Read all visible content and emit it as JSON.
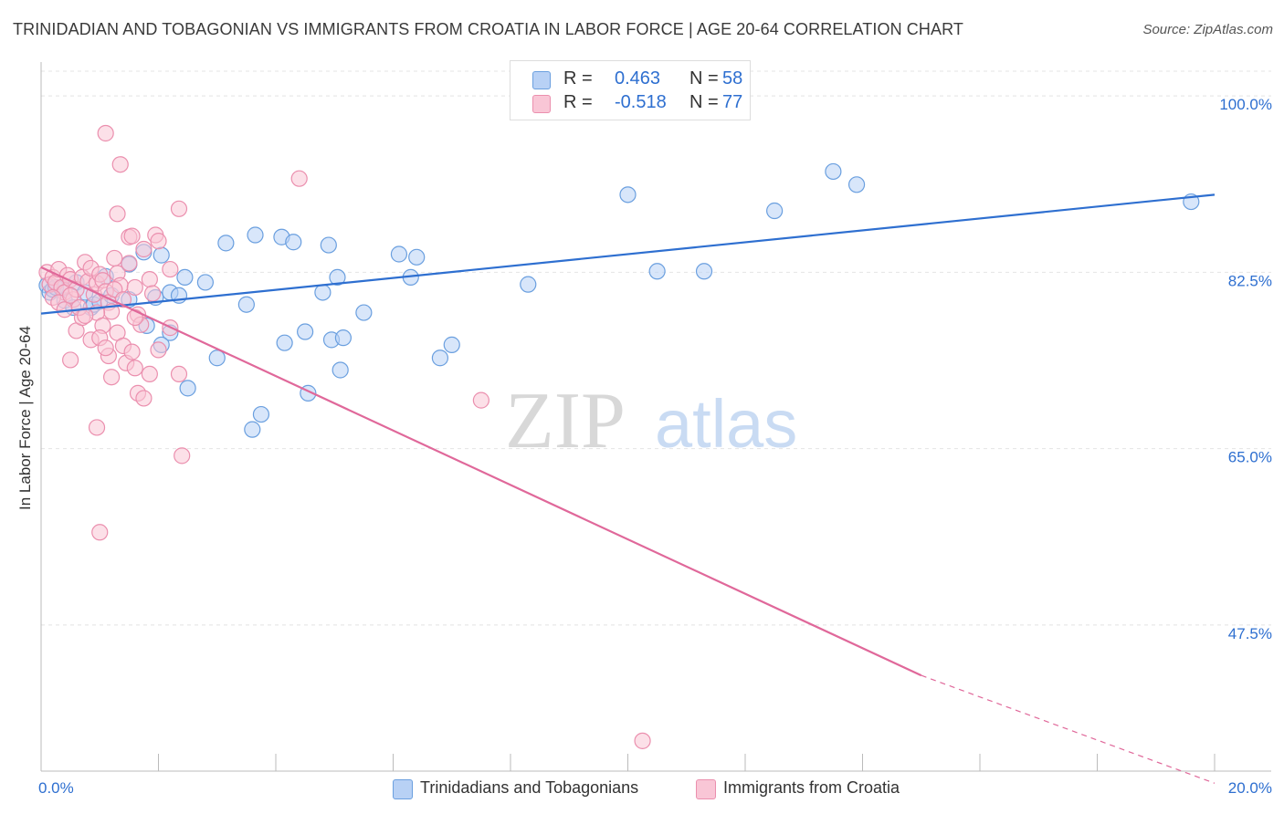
{
  "title": "TRINIDADIAN AND TOBAGONIAN VS IMMIGRANTS FROM CROATIA IN LABOR FORCE | AGE 20-64 CORRELATION CHART",
  "source": "Source: ZipAtlas.com",
  "watermark": {
    "zip": "ZIP",
    "atlas": "atlas"
  },
  "colors": {
    "blue_fill": "#b8d1f5",
    "blue_stroke": "#6a9fdf",
    "blue_line": "#2e6fd0",
    "pink_fill": "#f9c6d6",
    "pink_stroke": "#eb8fae",
    "pink_line": "#e0689a",
    "blue_text": "#2e6fd0",
    "grid": "#e4e4e4",
    "axis": "#bbbbbb"
  },
  "stats": [
    {
      "r_label": "R =",
      "r_value": "0.463",
      "n_label": "N =",
      "n_value": "58",
      "color": "blue"
    },
    {
      "r_label": "R =",
      "r_value": "-0.518",
      "n_label": "N =",
      "n_value": "77",
      "color": "pink"
    }
  ],
  "chart_data": {
    "type": "scatter",
    "title": "TRINIDADIAN AND TOBAGONIAN VS IMMIGRANTS FROM CROATIA IN LABOR FORCE | AGE 20-64 CORRELATION CHART",
    "xlabel": "",
    "ylabel": "In Labor Force | Age 20-64",
    "xlim": [
      0,
      20
    ],
    "ylim": [
      33,
      103
    ],
    "x_tick_labels": [
      "0.0%",
      "20.0%"
    ],
    "y_ticks": [
      47.5,
      65.0,
      82.5,
      100.0
    ],
    "y_tick_labels": [
      "47.5%",
      "65.0%",
      "82.5%",
      "100.0%"
    ],
    "grid": true,
    "legend_position": "bottom-center",
    "series": [
      {
        "name": "Trinidadians and Tobagonians",
        "color": "blue",
        "trend": {
          "x": [
            0,
            20
          ],
          "y": [
            78.4,
            90.2
          ]
        },
        "points": [
          [
            0.1,
            81.2
          ],
          [
            0.15,
            80.5
          ],
          [
            0.2,
            80.8
          ],
          [
            0.25,
            81.0
          ],
          [
            0.35,
            80.9
          ],
          [
            0.4,
            79.7
          ],
          [
            0.55,
            79.0
          ],
          [
            0.6,
            81.5
          ],
          [
            0.75,
            80.5
          ],
          [
            0.85,
            79.0
          ],
          [
            0.9,
            79.3
          ],
          [
            1.0,
            79.6
          ],
          [
            1.1,
            82.1
          ],
          [
            1.5,
            83.3
          ],
          [
            1.75,
            84.5
          ],
          [
            1.95,
            80.0
          ],
          [
            2.05,
            84.2
          ],
          [
            2.2,
            80.5
          ],
          [
            2.35,
            80.2
          ],
          [
            2.45,
            82.0
          ],
          [
            2.8,
            81.5
          ],
          [
            3.15,
            85.4
          ],
          [
            3.5,
            79.3
          ],
          [
            3.65,
            86.2
          ],
          [
            4.1,
            86.0
          ],
          [
            4.3,
            85.5
          ],
          [
            4.5,
            76.6
          ],
          [
            4.8,
            80.5
          ],
          [
            4.9,
            85.2
          ],
          [
            5.05,
            82.0
          ],
          [
            5.1,
            72.8
          ],
          [
            1.8,
            77.2
          ],
          [
            2.2,
            76.5
          ],
          [
            2.05,
            75.3
          ],
          [
            1.5,
            79.8
          ],
          [
            1.2,
            80.2
          ],
          [
            2.5,
            71.0
          ],
          [
            3.0,
            74.0
          ],
          [
            3.75,
            68.4
          ],
          [
            3.6,
            66.9
          ],
          [
            4.15,
            75.5
          ],
          [
            4.55,
            70.5
          ],
          [
            4.95,
            75.8
          ],
          [
            5.15,
            76.0
          ],
          [
            5.5,
            78.5
          ],
          [
            6.1,
            84.3
          ],
          [
            6.3,
            82.0
          ],
          [
            6.4,
            84.0
          ],
          [
            6.8,
            74.0
          ],
          [
            7.0,
            75.3
          ],
          [
            8.3,
            81.3
          ],
          [
            10.0,
            90.2
          ],
          [
            10.5,
            82.6
          ],
          [
            11.3,
            82.6
          ],
          [
            12.5,
            88.6
          ],
          [
            13.5,
            92.5
          ],
          [
            13.9,
            91.2
          ],
          [
            19.6,
            89.5
          ]
        ]
      },
      {
        "name": "Immigrants from Croatia",
        "color": "pink",
        "trend": {
          "x": [
            0,
            15.0
          ],
          "y": [
            83.0,
            42.5
          ]
        },
        "trend_dashed": {
          "x": [
            15.0,
            20
          ],
          "y": [
            42.5,
            31.8
          ]
        },
        "points": [
          [
            0.1,
            82.5
          ],
          [
            0.15,
            81.3
          ],
          [
            0.2,
            82.0
          ],
          [
            0.25,
            81.5
          ],
          [
            0.3,
            82.8
          ],
          [
            0.35,
            81.0
          ],
          [
            0.4,
            80.5
          ],
          [
            0.45,
            82.2
          ],
          [
            0.5,
            81.8
          ],
          [
            0.55,
            79.8
          ],
          [
            0.6,
            80.8
          ],
          [
            0.7,
            82.0
          ],
          [
            0.75,
            83.5
          ],
          [
            0.8,
            81.6
          ],
          [
            0.85,
            82.9
          ],
          [
            0.9,
            80.3
          ],
          [
            0.95,
            81.4
          ],
          [
            1.0,
            82.3
          ],
          [
            1.05,
            81.7
          ],
          [
            1.1,
            80.6
          ],
          [
            1.15,
            79.5
          ],
          [
            1.2,
            78.6
          ],
          [
            1.25,
            83.9
          ],
          [
            1.3,
            82.4
          ],
          [
            1.35,
            81.2
          ],
          [
            1.5,
            86.0
          ],
          [
            1.5,
            83.4
          ],
          [
            1.6,
            81.0
          ],
          [
            1.65,
            78.3
          ],
          [
            1.75,
            84.8
          ],
          [
            1.85,
            81.8
          ],
          [
            1.95,
            86.2
          ],
          [
            2.0,
            85.6
          ],
          [
            2.2,
            82.8
          ],
          [
            2.35,
            88.8
          ],
          [
            0.6,
            76.7
          ],
          [
            0.7,
            78.0
          ],
          [
            0.85,
            75.8
          ],
          [
            0.95,
            78.5
          ],
          [
            1.05,
            77.2
          ],
          [
            1.15,
            74.2
          ],
          [
            1.2,
            72.1
          ],
          [
            1.3,
            76.5
          ],
          [
            1.4,
            75.2
          ],
          [
            1.45,
            73.5
          ],
          [
            1.55,
            74.6
          ],
          [
            1.6,
            73.0
          ],
          [
            1.65,
            70.5
          ],
          [
            1.75,
            70.0
          ],
          [
            1.85,
            72.4
          ],
          [
            0.5,
            73.8
          ],
          [
            0.95,
            67.1
          ],
          [
            1.0,
            56.7
          ],
          [
            1.1,
            96.3
          ],
          [
            1.35,
            93.2
          ],
          [
            1.3,
            88.3
          ],
          [
            1.55,
            86.1
          ],
          [
            1.7,
            77.3
          ],
          [
            2.0,
            74.8
          ],
          [
            2.2,
            77.0
          ],
          [
            2.35,
            72.4
          ],
          [
            2.4,
            64.3
          ],
          [
            4.4,
            91.8
          ],
          [
            7.5,
            69.8
          ],
          [
            10.25,
            36.0
          ],
          [
            0.2,
            80.0
          ],
          [
            0.3,
            79.5
          ],
          [
            0.4,
            78.8
          ],
          [
            0.5,
            80.2
          ],
          [
            0.65,
            79.0
          ],
          [
            0.75,
            78.2
          ],
          [
            1.0,
            76.0
          ],
          [
            1.1,
            75.0
          ],
          [
            1.25,
            80.8
          ],
          [
            1.4,
            79.8
          ],
          [
            1.6,
            78.0
          ],
          [
            1.9,
            80.4
          ]
        ]
      }
    ]
  },
  "legend": [
    {
      "label": "Trinidadians and Tobagonians",
      "color": "blue"
    },
    {
      "label": "Immigrants from Croatia",
      "color": "pink"
    }
  ]
}
